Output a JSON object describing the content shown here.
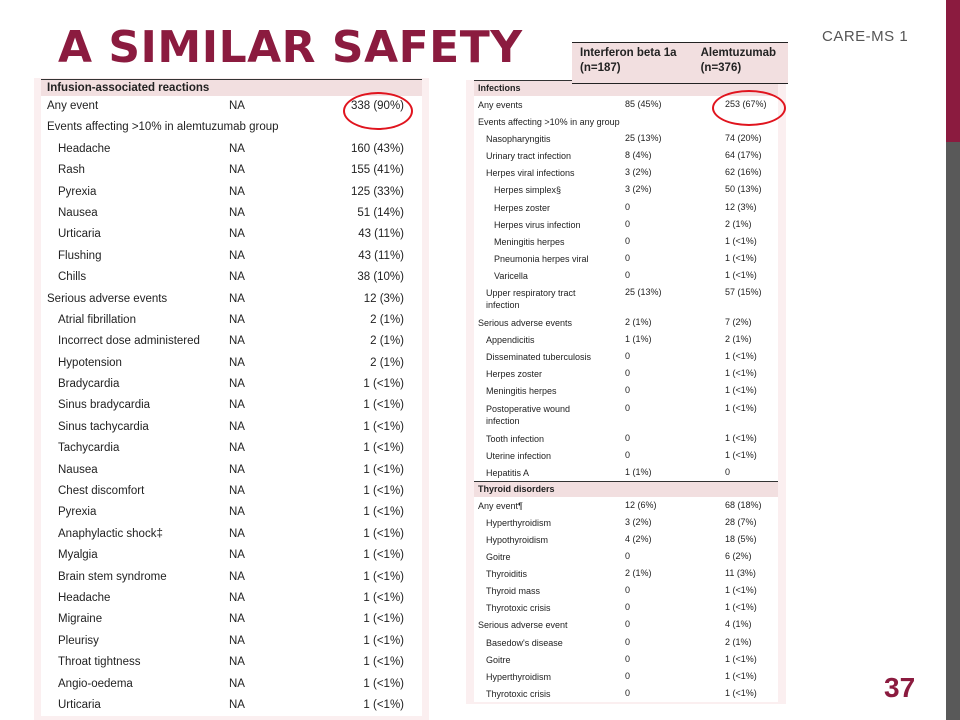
{
  "slide": {
    "title": "A SIMILAR SAFETY",
    "course_label": "CARE-MS 1",
    "page_number": "37",
    "colors": {
      "accent": "#8b1b3f",
      "sidebar": "#595959",
      "header_fill": "#f2dfe0",
      "panel_fill": "#fbeff0",
      "highlight": "#e0141e"
    }
  },
  "header": {
    "col1": [
      "Interferon beta 1a",
      "(n=187)"
    ],
    "col2": [
      "Alemtuzumab",
      "(n=376)"
    ]
  },
  "left_table": {
    "section": "Infusion-associated reactions",
    "rows": [
      {
        "label": "Any event",
        "na": "NA",
        "value": "338 (90%)",
        "indent": 0
      },
      {
        "label": "Events affecting >10% in alemtuzumab group",
        "na": "",
        "value": "",
        "indent": 0
      },
      {
        "label": "Headache",
        "na": "NA",
        "value": "160 (43%)",
        "indent": 1
      },
      {
        "label": "Rash",
        "na": "NA",
        "value": "155 (41%)",
        "indent": 1
      },
      {
        "label": "Pyrexia",
        "na": "NA",
        "value": "125 (33%)",
        "indent": 1
      },
      {
        "label": "Nausea",
        "na": "NA",
        "value": "51 (14%)",
        "indent": 1
      },
      {
        "label": "Urticaria",
        "na": "NA",
        "value": "43 (11%)",
        "indent": 1
      },
      {
        "label": "Flushing",
        "na": "NA",
        "value": "43 (11%)",
        "indent": 1
      },
      {
        "label": "Chills",
        "na": "NA",
        "value": "38 (10%)",
        "indent": 1
      },
      {
        "label": "Serious adverse events",
        "na": "NA",
        "value": "12 (3%)",
        "indent": 0
      },
      {
        "label": "Atrial fibrillation",
        "na": "NA",
        "value": "2 (1%)",
        "indent": 1
      },
      {
        "label": "Incorrect dose administered",
        "na": "NA",
        "value": "2 (1%)",
        "indent": 1
      },
      {
        "label": "Hypotension",
        "na": "NA",
        "value": "2 (1%)",
        "indent": 1
      },
      {
        "label": "Bradycardia",
        "na": "NA",
        "value": "1 (<1%)",
        "indent": 1
      },
      {
        "label": "Sinus bradycardia",
        "na": "NA",
        "value": "1 (<1%)",
        "indent": 1
      },
      {
        "label": "Sinus tachycardia",
        "na": "NA",
        "value": "1 (<1%)",
        "indent": 1
      },
      {
        "label": "Tachycardia",
        "na": "NA",
        "value": "1 (<1%)",
        "indent": 1
      },
      {
        "label": "Nausea",
        "na": "NA",
        "value": "1 (<1%)",
        "indent": 1
      },
      {
        "label": "Chest discomfort",
        "na": "NA",
        "value": "1 (<1%)",
        "indent": 1
      },
      {
        "label": "Pyrexia",
        "na": "NA",
        "value": "1 (<1%)",
        "indent": 1
      },
      {
        "label": "Anaphylactic shock‡",
        "na": "NA",
        "value": "1 (<1%)",
        "indent": 1
      },
      {
        "label": "Myalgia",
        "na": "NA",
        "value": "1 (<1%)",
        "indent": 1
      },
      {
        "label": "Brain stem syndrome",
        "na": "NA",
        "value": "1 (<1%)",
        "indent": 1
      },
      {
        "label": "Headache",
        "na": "NA",
        "value": "1 (<1%)",
        "indent": 1
      },
      {
        "label": "Migraine",
        "na": "NA",
        "value": "1 (<1%)",
        "indent": 1
      },
      {
        "label": "Pleurisy",
        "na": "NA",
        "value": "1 (<1%)",
        "indent": 1
      },
      {
        "label": "Throat tightness",
        "na": "NA",
        "value": "1 (<1%)",
        "indent": 1
      },
      {
        "label": "Angio-oedema",
        "na": "NA",
        "value": "1 (<1%)",
        "indent": 1
      },
      {
        "label": "Urticaria",
        "na": "NA",
        "value": "1 (<1%)",
        "indent": 1
      }
    ]
  },
  "right_table": {
    "sections": [
      {
        "title": "Infections",
        "rows": [
          {
            "label": "Any events",
            "c1": "85 (45%)",
            "c2": "253 (67%)",
            "indent": 0
          },
          {
            "label": "Events affecting >10% in any group",
            "c1": "",
            "c2": "",
            "indent": 0
          },
          {
            "label": "Nasopharyngitis",
            "c1": "25 (13%)",
            "c2": "74 (20%)",
            "indent": 1
          },
          {
            "label": "Urinary tract infection",
            "c1": "8 (4%)",
            "c2": "64 (17%)",
            "indent": 1
          },
          {
            "label": "Herpes viral infections",
            "c1": "3 (2%)",
            "c2": "62 (16%)",
            "indent": 1
          },
          {
            "label": "Herpes simplex§",
            "c1": "3 (2%)",
            "c2": "50 (13%)",
            "indent": 2
          },
          {
            "label": "Herpes zoster",
            "c1": "0",
            "c2": "12 (3%)",
            "indent": 2
          },
          {
            "label": "Herpes virus infection",
            "c1": "0",
            "c2": "2 (1%)",
            "indent": 2
          },
          {
            "label": "Meningitis herpes",
            "c1": "0",
            "c2": "1 (<1%)",
            "indent": 2
          },
          {
            "label": "Pneumonia herpes viral",
            "c1": "0",
            "c2": "1 (<1%)",
            "indent": 2
          },
          {
            "label": "Varicella",
            "c1": "0",
            "c2": "1 (<1%)",
            "indent": 2
          },
          {
            "label": "Upper respiratory tract\ninfection",
            "c1": "25 (13%)",
            "c2": "57 (15%)",
            "indent": 1,
            "tall": true
          },
          {
            "label": "Serious adverse events",
            "c1": "2 (1%)",
            "c2": "7 (2%)",
            "indent": 0
          },
          {
            "label": "Appendicitis",
            "c1": "1 (1%)",
            "c2": "2 (1%)",
            "indent": 1
          },
          {
            "label": "Disseminated tuberculosis",
            "c1": "0",
            "c2": "1 (<1%)",
            "indent": 1
          },
          {
            "label": "Herpes zoster",
            "c1": "0",
            "c2": "1 (<1%)",
            "indent": 1
          },
          {
            "label": "Meningitis herpes",
            "c1": "0",
            "c2": "1 (<1%)",
            "indent": 1
          },
          {
            "label": "Postoperative wound\ninfection",
            "c1": "0",
            "c2": "1 (<1%)",
            "indent": 1,
            "tall": true
          },
          {
            "label": "Tooth infection",
            "c1": "0",
            "c2": "1 (<1%)",
            "indent": 1
          },
          {
            "label": "Uterine infection",
            "c1": "0",
            "c2": "1 (<1%)",
            "indent": 1
          },
          {
            "label": "Hepatitis A",
            "c1": "1 (1%)",
            "c2": "0",
            "indent": 1
          }
        ]
      },
      {
        "title": "Thyroid disorders",
        "rows": [
          {
            "label": "Any event¶",
            "c1": "12 (6%)",
            "c2": "68 (18%)",
            "indent": 0
          },
          {
            "label": "Hyperthyroidism",
            "c1": "3 (2%)",
            "c2": "28 (7%)",
            "indent": 1
          },
          {
            "label": "Hypothyroidism",
            "c1": "4 (2%)",
            "c2": "18 (5%)",
            "indent": 1
          },
          {
            "label": "Goitre",
            "c1": "0",
            "c2": "6 (2%)",
            "indent": 1
          },
          {
            "label": "Thyroiditis",
            "c1": "2 (1%)",
            "c2": "11 (3%)",
            "indent": 1
          },
          {
            "label": "Thyroid mass",
            "c1": "0",
            "c2": "1 (<1%)",
            "indent": 1
          },
          {
            "label": "Thyrotoxic crisis",
            "c1": "0",
            "c2": "1 (<1%)",
            "indent": 1
          },
          {
            "label": "Serious adverse event",
            "c1": "0",
            "c2": "4 (1%)",
            "indent": 0
          },
          {
            "label": "Basedow's disease",
            "c1": "0",
            "c2": "2 (1%)",
            "indent": 1
          },
          {
            "label": "Goitre",
            "c1": "0",
            "c2": "1 (<1%)",
            "indent": 1
          },
          {
            "label": "Hyperthyroidism",
            "c1": "0",
            "c2": "1 (<1%)",
            "indent": 1
          },
          {
            "label": "Thyrotoxic crisis",
            "c1": "0",
            "c2": "1 (<1%)",
            "indent": 1
          }
        ]
      }
    ]
  }
}
